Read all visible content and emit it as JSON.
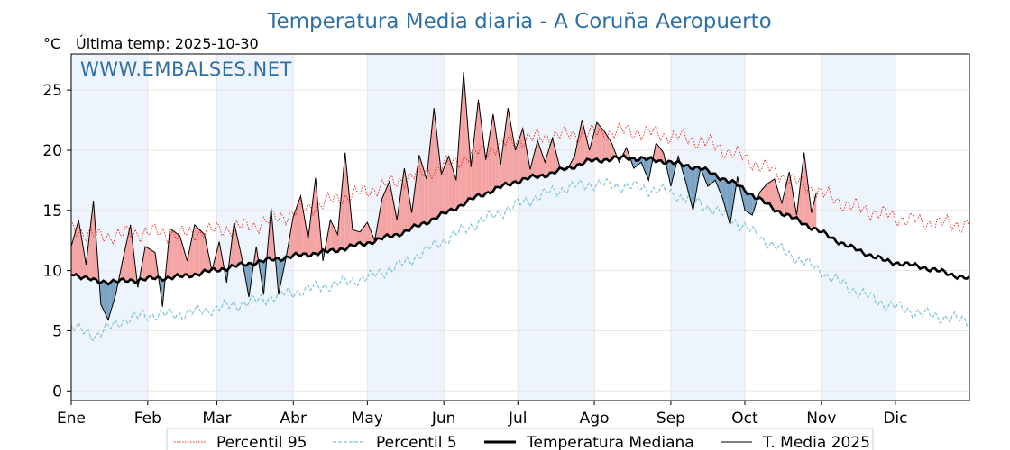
{
  "page": {
    "title": "Temperatura Media diaria - A Coruña Aeropuerto",
    "unit": "°C",
    "last_temp": "Última temp: 2025-10-30",
    "watermark": "WWW.EMBALSES.NET"
  },
  "colors": {
    "title": "#2e6fa6",
    "p95": "#e8261d",
    "p5": "#7ec4d8",
    "median": "#000000",
    "current": "#000000",
    "above_fill": "#f4a3a3",
    "below_fill": "#7ba3c4",
    "month_band": "#eef4fb"
  },
  "chart_data": {
    "type": "line",
    "title": "Temperatura Media diaria - A Coruña Aeropuerto",
    "ylabel": "°C",
    "ylim": [
      -0.8,
      28
    ],
    "yticks": [
      0,
      5,
      10,
      15,
      20,
      25
    ],
    "months": [
      "Ene",
      "Feb",
      "Mar",
      "Abr",
      "May",
      "Jun",
      "Jul",
      "Ago",
      "Sep",
      "Oct",
      "Nov",
      "Dic"
    ],
    "month_start_days": [
      0,
      31,
      59,
      90,
      120,
      151,
      181,
      212,
      243,
      273,
      304,
      334
    ],
    "days_in_year": 365,
    "grid": true,
    "legend_placement": "bottom",
    "series": [
      {
        "name": "Percentil 95",
        "style": "dotted-red",
        "anchors_day": [
          0,
          10,
          20,
          30,
          45,
          60,
          75,
          90,
          105,
          120,
          135,
          150,
          165,
          180,
          195,
          210,
          225,
          240,
          255,
          270,
          285,
          300,
          315,
          330,
          345,
          364
        ],
        "anchors_value": [
          13.6,
          12.8,
          13.0,
          13.2,
          13.0,
          13.4,
          13.8,
          14.8,
          15.8,
          16.6,
          17.6,
          18.6,
          19.8,
          20.8,
          21.2,
          21.4,
          21.6,
          21.3,
          20.8,
          19.6,
          18.2,
          16.8,
          15.4,
          14.6,
          14.0,
          13.8
        ],
        "noise_amplitude": 0.8
      },
      {
        "name": "Percentil 5",
        "style": "dashed-lightblue",
        "anchors_day": [
          0,
          10,
          20,
          30,
          45,
          60,
          75,
          90,
          105,
          120,
          135,
          150,
          165,
          180,
          195,
          210,
          225,
          240,
          255,
          270,
          285,
          300,
          315,
          330,
          345,
          364
        ],
        "anchors_value": [
          5.3,
          4.6,
          5.8,
          6.3,
          6.4,
          6.9,
          7.5,
          8.2,
          8.8,
          9.4,
          10.6,
          12.4,
          14.0,
          15.4,
          16.6,
          17.2,
          17.0,
          16.6,
          15.6,
          14.0,
          12.0,
          10.4,
          8.6,
          7.2,
          6.4,
          5.8
        ],
        "noise_amplitude": 0.6
      },
      {
        "name": "Temperatura Mediana",
        "style": "thick-black",
        "anchors_day": [
          0,
          10,
          20,
          30,
          45,
          60,
          75,
          90,
          105,
          120,
          135,
          150,
          165,
          180,
          195,
          210,
          225,
          240,
          255,
          270,
          285,
          300,
          315,
          330,
          345,
          364
        ],
        "anchors_value": [
          9.8,
          9.1,
          9.1,
          9.3,
          9.5,
          10.1,
          10.7,
          11.2,
          11.6,
          12.3,
          13.2,
          14.6,
          16.2,
          17.4,
          18.1,
          19.1,
          19.4,
          19.1,
          18.5,
          17.1,
          15.1,
          13.6,
          12.0,
          10.8,
          10.3,
          9.3
        ],
        "noise_amplitude": 0.25
      },
      {
        "name": "T. Media 2025",
        "style": "thin-black",
        "last_day": 302,
        "anchors_day": [
          0,
          3,
          6,
          9,
          12,
          15,
          18,
          21,
          24,
          27,
          30,
          34,
          37,
          40,
          44,
          47,
          50,
          54,
          57,
          60,
          63,
          66,
          69,
          72,
          75,
          78,
          81,
          84,
          87,
          90,
          93,
          96,
          99,
          102,
          105,
          108,
          111,
          114,
          117,
          120,
          123,
          126,
          129,
          132,
          135,
          138,
          141,
          144,
          147,
          150,
          153,
          156,
          159,
          162,
          165,
          168,
          171,
          174,
          177,
          180,
          183,
          186,
          189,
          192,
          195,
          198,
          201,
          204,
          207,
          210,
          213,
          216,
          219,
          222,
          225,
          228,
          231,
          234,
          237,
          240,
          243,
          246,
          249,
          252,
          255,
          258,
          261,
          264,
          267,
          270,
          273,
          276,
          279,
          282,
          285,
          288,
          291,
          294,
          297,
          300,
          302
        ],
        "anchors_value": [
          12.0,
          14.2,
          10.5,
          15.8,
          7.2,
          5.9,
          8.0,
          11.0,
          13.8,
          8.6,
          12.0,
          11.5,
          7.0,
          13.5,
          12.9,
          10.8,
          13.8,
          13.0,
          10.0,
          12.4,
          9.0,
          14.0,
          11.2,
          7.8,
          12.0,
          8.0,
          15.2,
          8.0,
          11.0,
          14.5,
          16.2,
          12.6,
          17.7,
          10.8,
          14.2,
          13.0,
          19.8,
          13.4,
          13.2,
          14.0,
          12.5,
          16.0,
          17.4,
          14.2,
          18.5,
          14.8,
          19.6,
          17.6,
          23.5,
          18.0,
          19.5,
          17.5,
          26.5,
          18.6,
          24.2,
          19.2,
          23.0,
          18.8,
          23.5,
          20.0,
          21.8,
          18.4,
          20.8,
          19.0,
          21.0,
          18.6,
          18.4,
          19.5,
          22.5,
          20.0,
          22.3,
          21.6,
          20.6,
          19.0,
          20.2,
          18.5,
          19.0,
          17.5,
          20.6,
          19.8,
          17.0,
          19.5,
          17.4,
          15.0,
          18.5,
          17.0,
          17.5,
          16.0,
          13.8,
          17.8,
          15.0,
          14.6,
          16.5,
          17.2,
          17.6,
          15.6,
          18.2,
          14.6,
          19.8,
          14.8,
          16.5
        ]
      }
    ]
  },
  "legend": {
    "p95": "Percentil 95",
    "p5": "Percentil 5",
    "median": "Temperatura Mediana",
    "current": "T. Media 2025"
  }
}
